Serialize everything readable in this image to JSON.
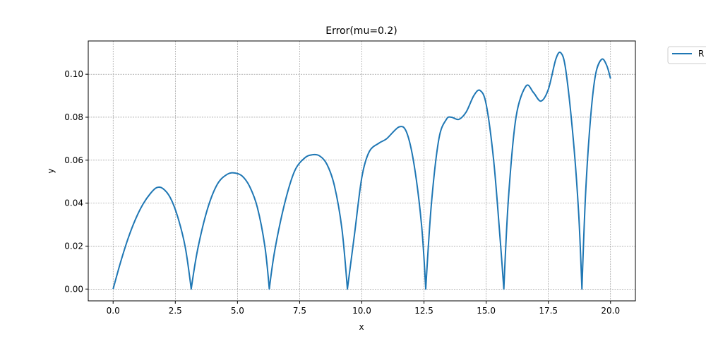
{
  "chart_data": {
    "type": "line",
    "title": "Error(mu=0.2)",
    "xlabel": "x",
    "ylabel": "y",
    "xlim": [
      -1.0,
      21.0
    ],
    "ylim": [
      -0.0055,
      0.1155
    ],
    "xticks": [
      "0.0",
      "2.5",
      "5.0",
      "7.5",
      "10.0",
      "12.5",
      "15.0",
      "17.5",
      "20.0"
    ],
    "yticks": [
      "0.00",
      "0.02",
      "0.04",
      "0.06",
      "0.08",
      "0.10"
    ],
    "grid": true,
    "legend": {
      "position": "outside-top-right",
      "entries": [
        "R"
      ]
    },
    "series": [
      {
        "name": "R",
        "color": "#1f77b4",
        "x": [
          0,
          0.3,
          0.6,
          0.9,
          1.2,
          1.5,
          1.75,
          2.0,
          2.3,
          2.6,
          2.9,
          3.14,
          3.4,
          3.8,
          4.2,
          4.6,
          4.9,
          5.2,
          5.5,
          5.8,
          6.1,
          6.28,
          6.5,
          6.9,
          7.3,
          7.7,
          8.0,
          8.3,
          8.6,
          8.9,
          9.2,
          9.42,
          9.7,
          10.0,
          10.3,
          10.7,
          11.0,
          11.5,
          11.8,
          12.1,
          12.4,
          12.57,
          12.8,
          13.1,
          13.4,
          13.6,
          13.9,
          14.2,
          14.5,
          14.75,
          15.0,
          15.3,
          15.55,
          15.71,
          15.9,
          16.2,
          16.6,
          16.9,
          17.2,
          17.5,
          17.8,
          18.0,
          18.2,
          18.5,
          18.72,
          18.85,
          19.0,
          19.2,
          19.4,
          19.65,
          19.85,
          20.0
        ],
        "y": [
          0.0,
          0.0125,
          0.0235,
          0.0325,
          0.0395,
          0.0445,
          0.0472,
          0.0468,
          0.0425,
          0.0335,
          0.0195,
          0.0,
          0.0185,
          0.0375,
          0.049,
          0.0535,
          0.054,
          0.0525,
          0.0475,
          0.038,
          0.02,
          0.0,
          0.018,
          0.04,
          0.055,
          0.061,
          0.0625,
          0.062,
          0.058,
          0.048,
          0.028,
          0.0,
          0.025,
          0.052,
          0.064,
          0.068,
          0.07,
          0.0755,
          0.073,
          0.058,
          0.03,
          0.0,
          0.04,
          0.07,
          0.079,
          0.08,
          0.079,
          0.0825,
          0.09,
          0.0925,
          0.086,
          0.06,
          0.025,
          0.0,
          0.043,
          0.08,
          0.0945,
          0.0915,
          0.0875,
          0.093,
          0.107,
          0.11,
          0.102,
          0.07,
          0.035,
          0.0,
          0.045,
          0.08,
          0.1,
          0.107,
          0.104,
          0.098
        ]
      }
    ]
  }
}
